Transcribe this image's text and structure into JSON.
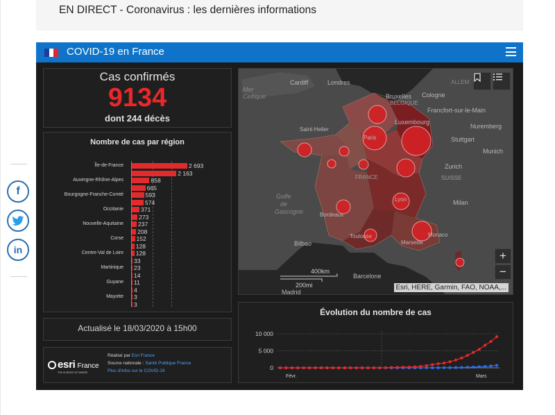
{
  "article": {
    "headline": "EN DIRECT - Coronavirus : les dernières informations"
  },
  "share": [
    {
      "name": "facebook",
      "glyph": "f",
      "color": "#2a6db0"
    },
    {
      "name": "twitter",
      "glyph": "🐦",
      "color": "#2a9ee8"
    },
    {
      "name": "linkedin",
      "glyph": "in",
      "color": "#2a6db0"
    }
  ],
  "dashboard": {
    "title": "COVID-19 en France",
    "header_color": "#0f73c9",
    "confirmed_label": "Cas confirmés",
    "confirmed_value": "9134",
    "deaths_text": "dont 244 décès",
    "regions_title": "Nombre de cas par région",
    "update_text": "Actualisé le 18/03/2020 à 15h00",
    "evolution_title": "Évolution du nombre de cas",
    "accent": "#e32a2c"
  },
  "credits": {
    "line1_prefix": "Réalisé par ",
    "line1_link": "Esri France",
    "line2_prefix": "Source nationale : ",
    "line2_link": "Santé Publique France",
    "line3_link": "Plus d'infos sur le COVID-19",
    "logo_text": "esri",
    "logo_suffix": "France",
    "logo_tagline": "THE SCIENCE OF WHERE"
  },
  "region_bars": {
    "labels": [
      "Île-de-France",
      "",
      "Auvergne-Rhône-Alpes",
      "",
      "Bourgogne-Franche-Comté",
      "",
      "Occitanie",
      "",
      "Nouvelle-Aquitaine",
      "",
      "Corse",
      "",
      "Centre-Val de Loire",
      "",
      "Martinique",
      "",
      "Guyane",
      "",
      "Mayotte",
      ""
    ],
    "values": [
      2693,
      2163,
      858,
      665,
      593,
      574,
      371,
      273,
      237,
      208,
      152,
      128,
      128,
      33,
      23,
      14,
      11,
      4,
      3,
      3
    ],
    "value_labels": [
      "2 693",
      "2 163",
      "858",
      "665",
      "593",
      "574",
      "371",
      "273",
      "237",
      "208",
      "152",
      "128",
      "128",
      "33",
      "23",
      "14",
      "11",
      "4",
      "3",
      "3"
    ]
  },
  "map": {
    "labels": [
      "Cardiff",
      "Londres",
      "Mer Celtique",
      "Bruxelles",
      "BELGIQUE",
      "Cologne",
      "Luxembourg",
      "Francfort-sur-le-Main",
      "Nuremberg",
      "Stuttgart",
      "Munich",
      "Saint-Helier",
      "Paris",
      "Zurich",
      "SUISSE",
      "FRANCE",
      "Lyon",
      "Golfe de Gascogne",
      "Bordeaux",
      "Milan",
      "Toulouse",
      "Monaco",
      "Marseille",
      "Bilbao",
      "Barcelone",
      "Madrid",
      "ALLEM"
    ],
    "scale_km": "400km",
    "scale_mi": "200mi",
    "attribution": "Esri, HERE, Garmin, FAO, NOAA,..."
  },
  "chart_data": {
    "type": "line",
    "title": "Évolution du nombre de cas",
    "x_tick_labels": [
      "Févr.",
      "Mars"
    ],
    "y_tick_labels": [
      "10 000",
      "5 000",
      "0"
    ],
    "ylim": [
      0,
      10000
    ],
    "grid": true,
    "series": [
      {
        "color": "#e32a2c",
        "values": [
          0,
          0,
          0,
          0,
          0,
          0,
          0,
          0,
          0,
          0,
          0,
          0,
          0,
          0,
          0,
          0,
          0,
          12,
          38,
          100,
          130,
          191,
          212,
          285,
          423,
          653,
          949,
          1209,
          1412,
          1784,
          2281,
          2876,
          3661,
          4499,
          5423,
          6633,
          7730,
          9134
        ]
      },
      {
        "color": "#2a6ff0",
        "values": [
          0,
          0,
          0,
          0,
          0,
          0,
          0,
          0,
          0,
          0,
          0,
          0,
          0,
          0,
          0,
          0,
          0,
          1,
          2,
          2,
          2,
          3,
          4,
          5,
          10,
          15,
          20,
          30,
          40,
          60,
          80,
          110,
          150,
          200,
          280,
          400,
          550,
          700
        ]
      }
    ]
  }
}
